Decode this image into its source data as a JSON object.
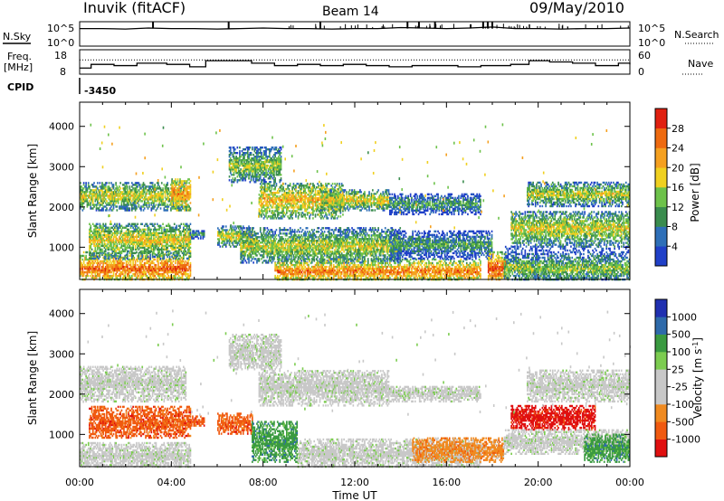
{
  "header": {
    "station": "Inuvik (fitACF)",
    "beam": "Beam 14",
    "date": "09/May/2010"
  },
  "strip1": {
    "left_label": "N.Sky",
    "right_label": "N.Search",
    "ticks_left": [
      "10^5",
      "10^0"
    ],
    "ticks_right": [
      "10^5",
      "10^0"
    ]
  },
  "strip2": {
    "left_label_1": "Freq.",
    "left_label_2": "[MHz]",
    "right_label": "Nave",
    "ticks_left": [
      "18",
      "8"
    ],
    "ticks_right": [
      "60",
      "0"
    ]
  },
  "cpid": {
    "label": "CPID",
    "value": "-3450"
  },
  "time_axis": {
    "label": "Time UT",
    "ticks": [
      "00:00",
      "04:00",
      "08:00",
      "12:00",
      "16:00",
      "20:00",
      "00:00"
    ]
  },
  "colors": {
    "power": [
      "#2040c8",
      "#2e6fb8",
      "#3a8c4e",
      "#6dc24a",
      "#f0d020",
      "#f5a020",
      "#ee6a10",
      "#e02010"
    ],
    "velocity": [
      "#e01010",
      "#f05a10",
      "#f08a20",
      "#c8c8c8",
      "#c8c8c8",
      "#7ccc50",
      "#3a9a40",
      "#2e6aaa",
      "#2030b0"
    ]
  },
  "chart_data": [
    {
      "type": "line",
      "name": "N.Sky strip",
      "x": [
        0,
        1,
        2,
        3,
        4,
        5,
        6,
        7,
        8,
        9,
        10,
        11,
        12,
        13,
        14,
        15,
        16,
        17,
        18,
        19,
        20,
        21,
        22,
        23,
        24
      ],
      "y_log10": [
        3.6,
        3.6,
        3.5,
        3.7,
        3.6,
        3.6,
        3.5,
        3.6,
        3.7,
        3.6,
        3.6,
        3.5,
        3.6,
        3.6,
        3.8,
        3.7,
        3.6,
        3.7,
        3.9,
        3.6,
        3.6,
        3.5,
        3.6,
        3.6,
        3.7
      ],
      "spike_hours": [
        3.2,
        6.5,
        10.5,
        14.3,
        14.8,
        15.5,
        17.6,
        17.8,
        18.0
      ]
    },
    {
      "type": "line",
      "name": "Freq / Nave strip",
      "x": [
        0,
        0.5,
        1.5,
        2.5,
        3.8,
        4.8,
        5.5,
        7.5,
        8.5,
        9.5,
        10.5,
        11.5,
        12.5,
        13.5,
        14.5,
        16.5,
        17.5,
        18.8,
        19.6,
        20.5,
        21.5,
        22.5,
        23.5,
        24
      ],
      "freq": [
        10.5,
        12.0,
        11.5,
        12.5,
        12.0,
        11.0,
        13.5,
        12.5,
        11.5,
        12.0,
        11.5,
        12.0,
        11.5,
        11.0,
        11.5,
        11.0,
        11.5,
        12.0,
        13.5,
        13.0,
        12.5,
        11.5,
        12.5,
        12.0
      ],
      "nave_dotted": 35,
      "xlim": [
        0,
        24
      ]
    },
    {
      "type": "heatmap",
      "quantity": "Power",
      "ylabel": "Slant Range [km]",
      "xlabel": "Time UT",
      "yticks": [
        1000,
        2000,
        3000,
        4000
      ],
      "ylim": [
        200,
        4600
      ],
      "xlim": [
        0,
        24
      ],
      "colorbar": {
        "label": "Power [dB]",
        "ticks": [
          "4",
          "8",
          "12",
          "16",
          "20",
          "24",
          "28"
        ],
        "range": [
          0,
          32
        ]
      },
      "regions": [
        {
          "t": [
            0.0,
            4.8
          ],
          "r": [
            180,
            900
          ],
          "center": 450,
          "level": 20
        },
        {
          "t": [
            0.4,
            4.8
          ],
          "r": [
            700,
            1600
          ],
          "center": 1150,
          "level": 13
        },
        {
          "t": [
            0.0,
            4.6
          ],
          "r": [
            1900,
            2600
          ],
          "center": 2250,
          "level": 12
        },
        {
          "t": [
            4.0,
            4.8
          ],
          "r": [
            1900,
            2700
          ],
          "center": 2300,
          "level": 18
        },
        {
          "t": [
            4.8,
            5.4
          ],
          "r": [
            1200,
            1400
          ],
          "center": 1300,
          "level": 6
        },
        {
          "t": [
            6.0,
            7.5
          ],
          "r": [
            1000,
            1500
          ],
          "center": 1250,
          "level": 12
        },
        {
          "t": [
            6.5,
            8.8
          ],
          "r": [
            2600,
            3500
          ],
          "center": 3000,
          "level": 10
        },
        {
          "t": [
            7.8,
            11.5
          ],
          "r": [
            1700,
            2600
          ],
          "center": 2150,
          "level": 15
        },
        {
          "t": [
            10.5,
            13.5
          ],
          "r": [
            1900,
            2400
          ],
          "center": 2150,
          "level": 13
        },
        {
          "t": [
            7.0,
            14.0
          ],
          "r": [
            600,
            1500
          ],
          "center": 1000,
          "level": 11
        },
        {
          "t": [
            8.5,
            17.5
          ],
          "r": [
            180,
            700
          ],
          "center": 380,
          "level": 19
        },
        {
          "t": [
            13.5,
            17.5
          ],
          "r": [
            1800,
            2300
          ],
          "center": 2050,
          "level": 6
        },
        {
          "t": [
            13.5,
            18.0
          ],
          "r": [
            700,
            1400
          ],
          "center": 1050,
          "level": 6
        },
        {
          "t": [
            17.8,
            18.6
          ],
          "r": [
            180,
            900
          ],
          "center": 450,
          "level": 22
        },
        {
          "t": [
            18.5,
            24.0
          ],
          "r": [
            180,
            1000
          ],
          "center": 450,
          "level": 9
        },
        {
          "t": [
            18.8,
            24.0
          ],
          "r": [
            1000,
            1900
          ],
          "center": 1450,
          "level": 12
        },
        {
          "t": [
            19.5,
            24.0
          ],
          "r": [
            2000,
            2600
          ],
          "center": 2300,
          "level": 11
        }
      ]
    },
    {
      "type": "heatmap",
      "quantity": "Velocity",
      "ylabel": "Slant Range [km]",
      "xlabel": "Time UT",
      "yticks": [
        1000,
        2000,
        3000,
        4000
      ],
      "ylim": [
        200,
        4600
      ],
      "xlim": [
        0,
        24
      ],
      "colorbar": {
        "label": "Velocity [m s-1]",
        "label_text": "Velocity [m s",
        "label_sup": "-1",
        "label_close": "]",
        "ticks": [
          "1000",
          "500",
          "100",
          "25",
          "-25",
          "-100",
          "-500",
          "-1000"
        ]
      },
      "regions": [
        {
          "t": [
            0.0,
            4.8
          ],
          "r": [
            180,
            800
          ],
          "center": 450,
          "level": 4
        },
        {
          "t": [
            0.4,
            4.8
          ],
          "r": [
            900,
            1700
          ],
          "center": 1250,
          "level": 1
        },
        {
          "t": [
            0.0,
            4.6
          ],
          "r": [
            1800,
            2700
          ],
          "center": 2250,
          "level": 4
        },
        {
          "t": [
            4.8,
            5.4
          ],
          "r": [
            1200,
            1450
          ],
          "center": 1300,
          "level": 1
        },
        {
          "t": [
            6.0,
            7.5
          ],
          "r": [
            1000,
            1500
          ],
          "center": 1250,
          "level": 1
        },
        {
          "t": [
            6.5,
            8.8
          ],
          "r": [
            2600,
            3500
          ],
          "center": 3000,
          "level": 4
        },
        {
          "t": [
            7.5,
            9.5
          ],
          "r": [
            300,
            1300
          ],
          "center": 800,
          "level": 6
        },
        {
          "t": [
            7.8,
            13.5
          ],
          "r": [
            1700,
            2600
          ],
          "center": 2150,
          "level": 4
        },
        {
          "t": [
            9.5,
            17.5
          ],
          "r": [
            180,
            900
          ],
          "center": 500,
          "level": 4
        },
        {
          "t": [
            13.5,
            17.5
          ],
          "r": [
            1800,
            2200
          ],
          "center": 2000,
          "level": 4
        },
        {
          "t": [
            14.5,
            18.5
          ],
          "r": [
            300,
            900
          ],
          "center": 600,
          "level": 2
        },
        {
          "t": [
            18.8,
            22.5
          ],
          "r": [
            1100,
            1700
          ],
          "center": 1400,
          "level": 0
        },
        {
          "t": [
            18.5,
            24.0
          ],
          "r": [
            500,
            1100
          ],
          "center": 800,
          "level": 4
        },
        {
          "t": [
            19.5,
            24.0
          ],
          "r": [
            1800,
            2600
          ],
          "center": 2200,
          "level": 4
        },
        {
          "t": [
            22.0,
            24.0
          ],
          "r": [
            300,
            1000
          ],
          "center": 650,
          "level": 6
        }
      ]
    }
  ]
}
